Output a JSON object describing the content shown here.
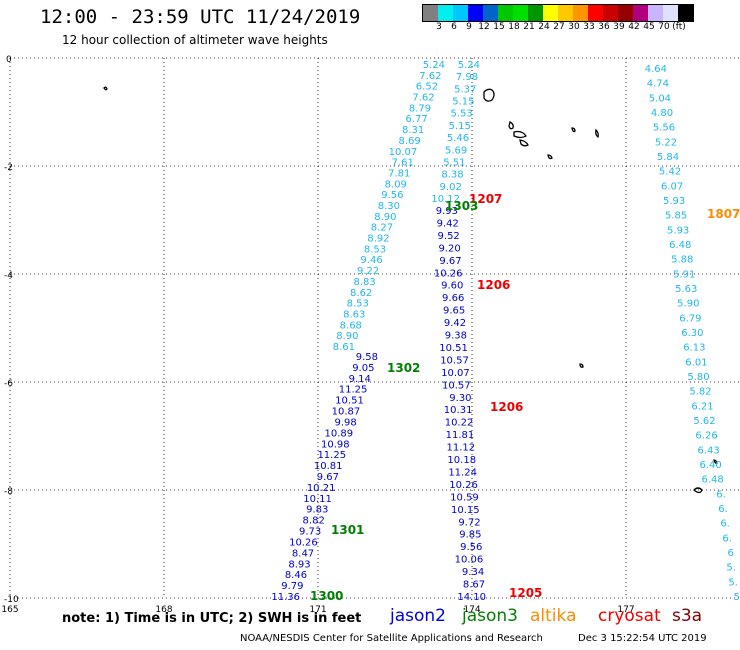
{
  "header": {
    "title": "12:00 - 23:59 UTC 11/24/2019",
    "subtitle": "12 hour collection of altimeter wave heights"
  },
  "scale": {
    "colors": [
      "#808080",
      "#00eeee",
      "#00c8ff",
      "#0000ff",
      "#0064c8",
      "#00c800",
      "#00e000",
      "#009600",
      "#ffff00",
      "#ffc800",
      "#ff9600",
      "#ff0000",
      "#c80000",
      "#960000",
      "#b00080",
      "#c8b4ff",
      "#e0e0ff",
      "#000000"
    ],
    "labels": [
      "3",
      "6",
      "9",
      "12",
      "15",
      "18",
      "21",
      "24",
      "27",
      "30",
      "33",
      "36",
      "39",
      "42",
      "45",
      "70",
      "(ft)"
    ]
  },
  "axes": {
    "x_ticks": [
      "165",
      "168",
      "171",
      "174",
      "177"
    ],
    "y_ticks": [
      "0",
      "-2",
      "-4",
      "-6",
      "-8",
      "-10"
    ]
  },
  "passes": [
    {
      "label": "1207",
      "color": "#ee0000"
    },
    {
      "label": "1303",
      "color": "#008000"
    },
    {
      "label": "1807",
      "color": "#ff8c00"
    },
    {
      "label": "1206",
      "color": "#ee0000"
    },
    {
      "label": "1302",
      "color": "#008000"
    },
    {
      "label": "1206",
      "color": "#ee0000"
    },
    {
      "label": "1301",
      "color": "#008000"
    },
    {
      "label": "1300",
      "color": "#008000"
    },
    {
      "label": "1205",
      "color": "#ee0000"
    }
  ],
  "tracks": {
    "cyan_left": [
      "5.24",
      "7.62",
      "6.52",
      "7.62",
      "8.79",
      "6.77",
      "8.31",
      "8.69",
      "10.07",
      "7.61",
      "7.81",
      "8.09",
      "9.56",
      "8.30",
      "8.90",
      "8.27",
      "8.92",
      "8.53",
      "9.46",
      "9.22",
      "8.83",
      "8.62",
      "8.53",
      "8.63",
      "8.68",
      "8.90",
      "8.61"
    ],
    "blue_left": [
      "9.58",
      "9.05",
      "9.14",
      "11.25",
      "10.51",
      "10.87",
      "9.98",
      "10.89",
      "10.98",
      "11.25",
      "10.81",
      "9.67",
      "10.21",
      "10.11",
      "9.83",
      "8.82",
      "9.73",
      "10.26",
      "8.47",
      "8.93",
      "8.46",
      "9.79",
      "11.36"
    ],
    "cyan_mid": [
      "5.24",
      "7.98",
      "5.37",
      "5.15",
      "5.53",
      "5.15",
      "5.46",
      "5.69",
      "5.51",
      "8.38",
      "9.02",
      "10.12"
    ],
    "blue_mid": [
      "9.93",
      "9.42",
      "9.52",
      "9.20",
      "9.67",
      "10.26",
      "9.60",
      "9.66",
      "9.65",
      "9.42",
      "9.38",
      "10.51",
      "10.57",
      "10.07",
      "10.57",
      "9.30",
      "10.31",
      "10.22",
      "11.81",
      "11.12",
      "10.18",
      "11.24",
      "10.26",
      "10.59",
      "10.15",
      "9.72",
      "9.85",
      "9.56",
      "10.06",
      "9.34",
      "8.67",
      "14.10"
    ],
    "cyan_right": [
      "4.64",
      "4.74",
      "5.04",
      "4.80",
      "5.56",
      "5.22",
      "5.84",
      "5.42",
      "6.07",
      "5.93",
      "5.85",
      "5.93",
      "6.48",
      "5.88",
      "5.91",
      "5.63",
      "5.90",
      "6.79",
      "6.30",
      "6.13",
      "6.01",
      "5.80",
      "5.82",
      "6.21",
      "5.62",
      "6.26",
      "6.43",
      "6.40",
      "6.48",
      "6.",
      "6.",
      "6.",
      "6.",
      "6",
      "5.",
      "5.",
      "5"
    ]
  },
  "legend": {
    "note": "note: 1) Time is in UTC; 2) SWH is in feet",
    "satellites": [
      {
        "name": "jason2",
        "color": "#0000dd"
      },
      {
        "name": "jason3",
        "color": "#008000"
      },
      {
        "name": "altika",
        "color": "#ff8c00"
      },
      {
        "name": "cryosat",
        "color": "#ee0000"
      },
      {
        "name": "s3a",
        "color": "#800000"
      }
    ]
  },
  "footer": {
    "credit": "NOAA/NESDIS Center for Satellite Applications and Research",
    "timestamp": "Dec  3 15:22:54 UTC 2019"
  }
}
